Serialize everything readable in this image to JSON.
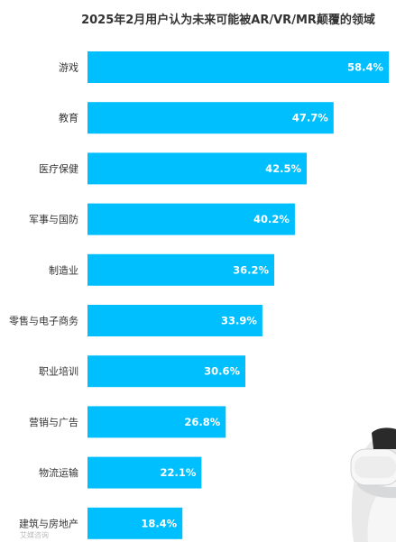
{
  "chart_data": {
    "type": "bar",
    "orientation": "horizontal",
    "title": "2025年2月用户认为未来可能被AR/VR/MR颠覆的领域",
    "categories": [
      "游戏",
      "教育",
      "医疗保健",
      "军事与国防",
      "制造业",
      "零售与电子商务",
      "职业培训",
      "营销与广告",
      "物流运输",
      "建筑与房地产"
    ],
    "values": [
      58.4,
      47.7,
      42.5,
      40.2,
      36.2,
      33.9,
      30.6,
      26.8,
      22.1,
      18.4
    ],
    "value_suffix": "%",
    "xlim": [
      0,
      58.4
    ],
    "bar_color": "#00BFFF",
    "grid": false,
    "legend": "none"
  },
  "watermark": "艾媒咨询",
  "decoration": "vr-headset-person-image"
}
